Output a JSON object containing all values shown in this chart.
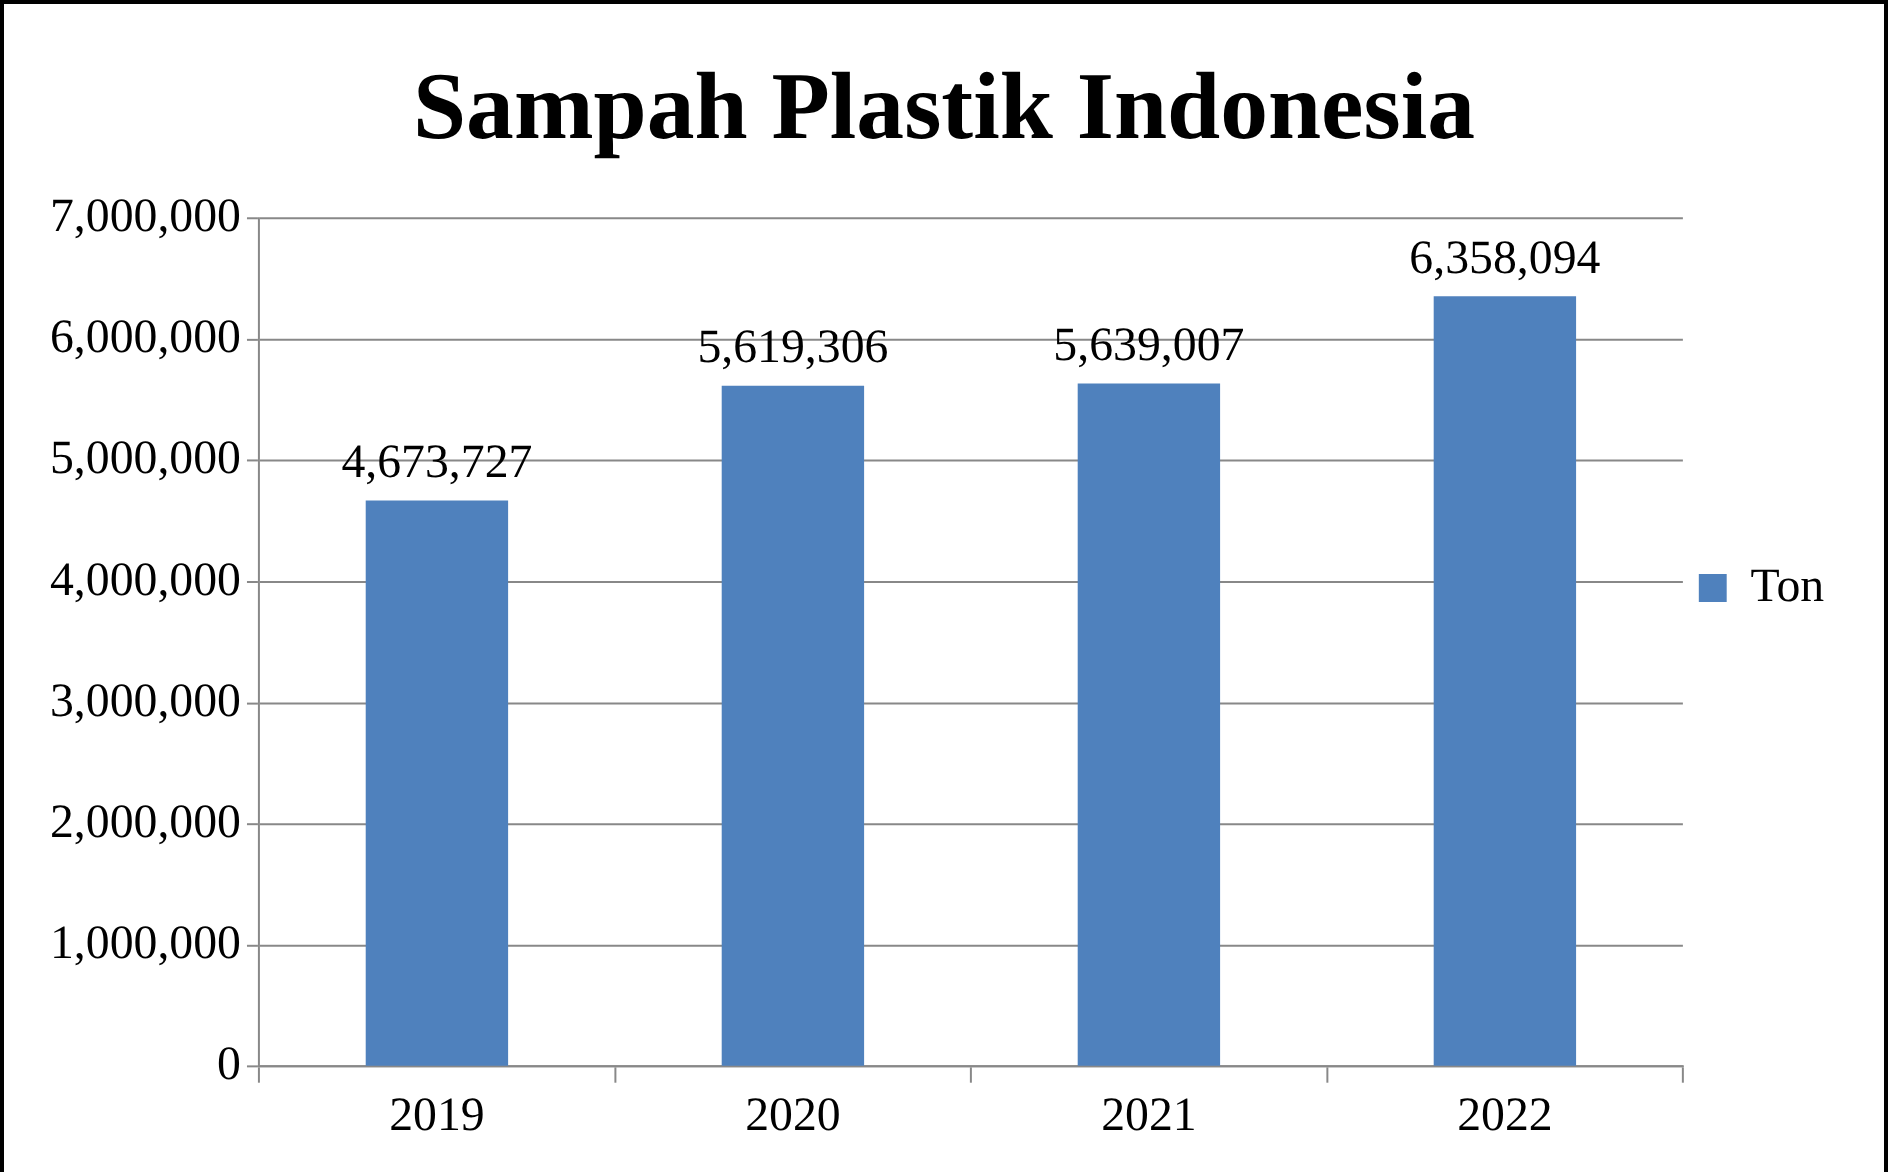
{
  "chart_data": {
    "type": "bar",
    "title": "Sampah Plastik Indonesia",
    "categories": [
      "2019",
      "2020",
      "2021",
      "2022"
    ],
    "series": [
      {
        "name": "Ton",
        "color": "#4f81bd",
        "values": [
          4673727,
          5619306,
          5639007,
          6358094
        ],
        "value_labels": [
          "4,673,727",
          "5,619,306",
          "5,639,007",
          "6,358,094"
        ]
      }
    ],
    "ylim": [
      0,
      7000000
    ],
    "yticks": [
      {
        "value": 0,
        "label": "0"
      },
      {
        "value": 1000000,
        "label": "1,000,000"
      },
      {
        "value": 2000000,
        "label": "2,000,000"
      },
      {
        "value": 3000000,
        "label": "3,000,000"
      },
      {
        "value": 4000000,
        "label": "4,000,000"
      },
      {
        "value": 5000000,
        "label": "5,000,000"
      },
      {
        "value": 6000000,
        "label": "6,000,000"
      },
      {
        "value": 7000000,
        "label": "7,000,000"
      }
    ],
    "grid": "y",
    "legend": "right"
  }
}
